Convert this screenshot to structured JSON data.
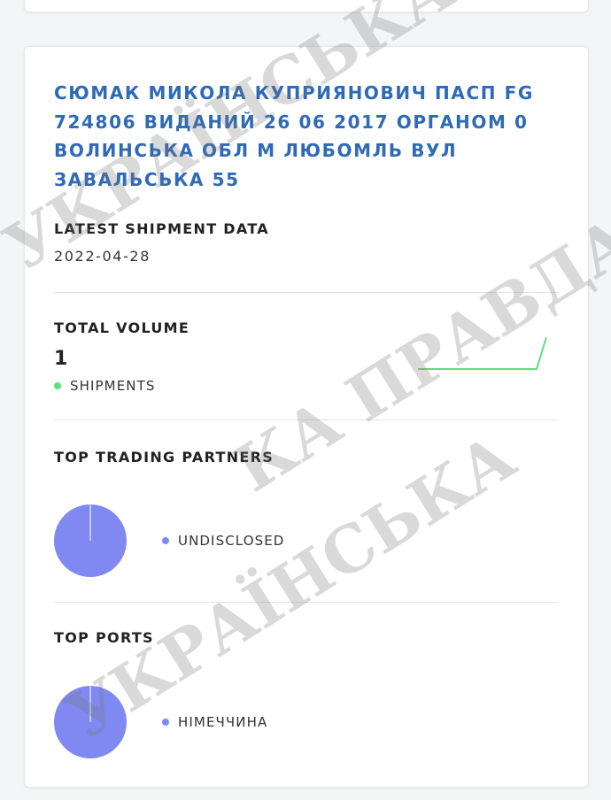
{
  "company": {
    "title": "СЮМАК МИКОЛА КУПРИЯНОВИЧ ПАСП FG 724806 ВИДАНИЙ 26 06 2017 ОРГАНОМ 0 ВОЛИНСЬКА ОБЛ М ЛЮБОМЛЬ ВУЛ ЗАВАЛЬСЬКА 55",
    "latest_shipment": {
      "label": "LATEST SHIPMENT DATA",
      "value": "2022-04-28"
    },
    "total_volume": {
      "label": "TOTAL VOLUME",
      "value": "1",
      "legend": "SHIPMENTS",
      "color": "#5ee07a"
    },
    "top_trading_partners": {
      "label": "TOP TRADING PARTNERS",
      "items": [
        {
          "name": "UNDISCLOSED",
          "share": 100
        }
      ],
      "color": "#8089f2"
    },
    "top_ports": {
      "label": "TOP PORTS",
      "items": [
        {
          "name": "НІМЕЧЧИНА",
          "share": 100
        }
      ],
      "color": "#8089f2"
    }
  },
  "watermark": "УКРАЇНСЬКА ПРАВДА"
}
